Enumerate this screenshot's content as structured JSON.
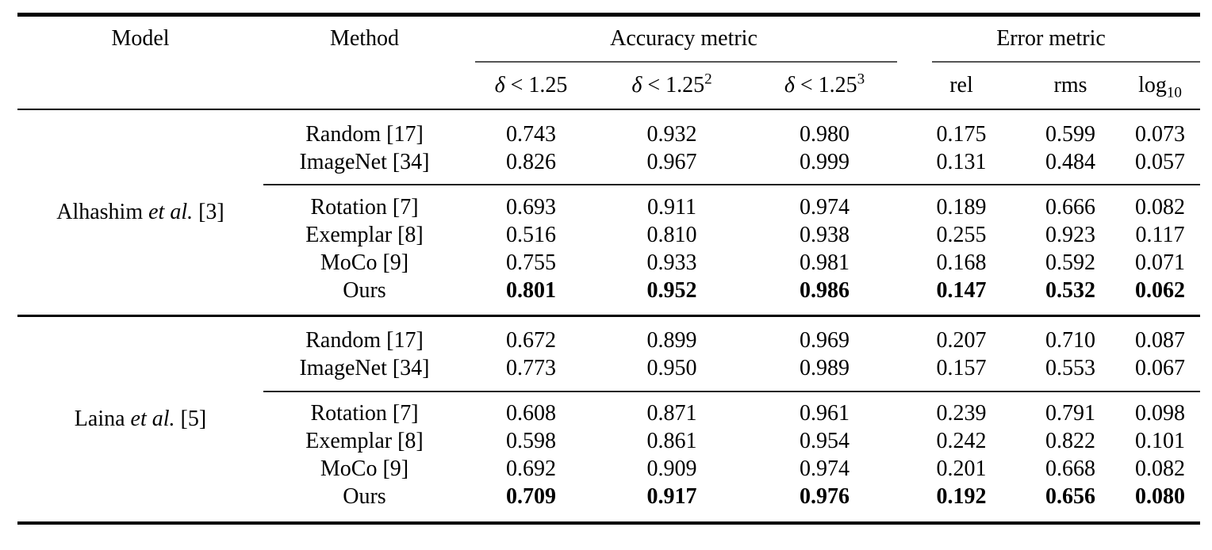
{
  "table": {
    "header": {
      "model": "Model",
      "method": "Method",
      "accuracy_group": "Accuracy metric",
      "error_group": "Error metric",
      "sub_headers": [
        {
          "sym": "δ",
          "rest": " < 1.25",
          "sup": ""
        },
        {
          "sym": "δ",
          "rest": " < 1.25",
          "sup": "2"
        },
        {
          "sym": "δ",
          "rest": " < 1.25",
          "sup": "3"
        },
        {
          "sym": "",
          "rest": "rel",
          "sup": ""
        },
        {
          "sym": "",
          "rest": "rms",
          "sup": ""
        },
        {
          "sym": "",
          "rest": "log",
          "sub": "10"
        }
      ]
    },
    "blocks": [
      {
        "model": {
          "pre": "Alhashim ",
          "italic": "et al.",
          "post": " [3]"
        },
        "rows": [
          {
            "method": "Random [17]",
            "values": [
              "0.743",
              "0.932",
              "0.980",
              "0.175",
              "0.599",
              "0.073"
            ]
          },
          {
            "method": "ImageNet [34]",
            "values": [
              "0.826",
              "0.967",
              "0.999",
              "0.131",
              "0.484",
              "0.057"
            ]
          },
          {
            "method": "Rotation [7]",
            "values": [
              "0.693",
              "0.911",
              "0.974",
              "0.189",
              "0.666",
              "0.082"
            ]
          },
          {
            "method": "Exemplar [8]",
            "values": [
              "0.516",
              "0.810",
              "0.938",
              "0.255",
              "0.923",
              "0.117"
            ]
          },
          {
            "method": "MoCo [9]",
            "values": [
              "0.755",
              "0.933",
              "0.981",
              "0.168",
              "0.592",
              "0.071"
            ]
          },
          {
            "method": "Ours",
            "values": [
              "0.801",
              "0.952",
              "0.986",
              "0.147",
              "0.532",
              "0.062"
            ],
            "bold": true
          }
        ]
      },
      {
        "model": {
          "pre": "Laina ",
          "italic": "et al.",
          "post": " [5]"
        },
        "rows": [
          {
            "method": "Random [17]",
            "values": [
              "0.672",
              "0.899",
              "0.969",
              "0.207",
              "0.710",
              "0.087"
            ]
          },
          {
            "method": "ImageNet [34]",
            "values": [
              "0.773",
              "0.950",
              "0.989",
              "0.157",
              "0.553",
              "0.067"
            ]
          },
          {
            "method": "Rotation [7]",
            "values": [
              "0.608",
              "0.871",
              "0.961",
              "0.239",
              "0.791",
              "0.098"
            ]
          },
          {
            "method": "Exemplar [8]",
            "values": [
              "0.598",
              "0.861",
              "0.954",
              "0.242",
              "0.822",
              "0.101"
            ]
          },
          {
            "method": "MoCo [9]",
            "values": [
              "0.692",
              "0.909",
              "0.974",
              "0.201",
              "0.668",
              "0.082"
            ]
          },
          {
            "method": "Ours",
            "values": [
              "0.709",
              "0.917",
              "0.976",
              "0.192",
              "0.656",
              "0.080"
            ],
            "bold": true
          }
        ]
      }
    ]
  }
}
